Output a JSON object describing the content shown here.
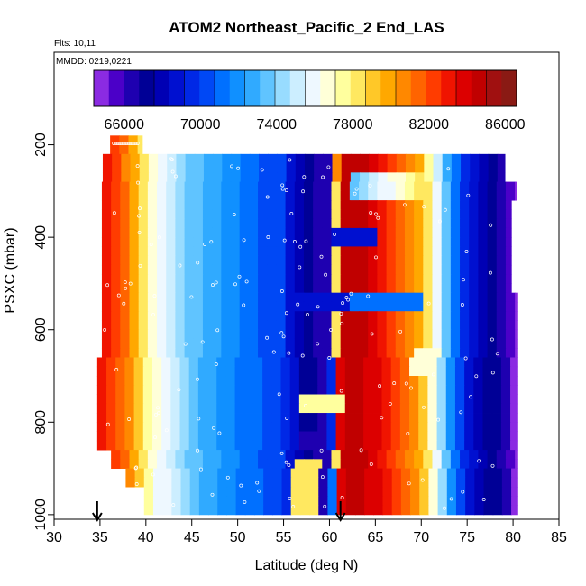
{
  "chart_data": {
    "type": "heatmap",
    "title": "ATOM2 Northeast_Pacific_2 End_LAS",
    "flights_label": "Flts: 10,11",
    "date_label": "MMDD: 0219,0221",
    "xlabel": "Latitude (deg N)",
    "ylabel": "PSXC (mbar)",
    "xlim": [
      30,
      85
    ],
    "ylim": [
      1010,
      0
    ],
    "x_ticks": [
      30,
      35,
      40,
      45,
      50,
      55,
      60,
      65,
      70,
      75,
      80,
      85
    ],
    "x_tick_labels": [
      "30",
      "35",
      "40",
      "45",
      "50",
      "55",
      "60",
      "65",
      "70",
      "75",
      "80",
      "85"
    ],
    "y_ticks": [
      200,
      400,
      600,
      800,
      1000
    ],
    "y_tick_labels": [
      "200",
      "400",
      "600",
      "800",
      "1000"
    ],
    "colorbar": {
      "min": 64400,
      "max": 86600,
      "ticks": [
        66000,
        70000,
        74000,
        78000,
        82000,
        86000
      ],
      "tick_labels": [
        "66000",
        "70000",
        "74000",
        "78000",
        "82000",
        "86000"
      ],
      "colors": [
        "#8b2be2",
        "#4b00c8",
        "#1e00b0",
        "#000096",
        "#0000b4",
        "#0010d0",
        "#0028e6",
        "#0048f5",
        "#0070ff",
        "#1090ff",
        "#30aaff",
        "#60c4ff",
        "#98dcff",
        "#cceeff",
        "#eef8ff",
        "#ffffd8",
        "#ffff9e",
        "#ffe860",
        "#ffc828",
        "#ffa800",
        "#ff8800",
        "#ff6400",
        "#ff3c00",
        "#f01400",
        "#dc0000",
        "#c00000",
        "#a01010",
        "#8a1a14"
      ]
    },
    "arrow_latitudes": [
      34.7,
      61.2
    ],
    "value_note": "Value (units of colorbar) varies with latitude; warm (82000-86000) near 35-38 N and 61-70 N, cool (66000-68000) near 57-60 N and 74-79 N, light (76000) near 40-41 N and 72 N.",
    "profile_lat": [
      35,
      37,
      39,
      41,
      45,
      50,
      55,
      57,
      60,
      61,
      63,
      66,
      70,
      71,
      72,
      73,
      75,
      77,
      79,
      80,
      81
    ],
    "profile_value": [
      83500,
      82000,
      79500,
      76500,
      73500,
      71500,
      70000,
      67500,
      66000,
      84000,
      85000,
      83000,
      80000,
      77000,
      75000,
      72500,
      69000,
      67500,
      66500,
      64800,
      64400
    ]
  }
}
